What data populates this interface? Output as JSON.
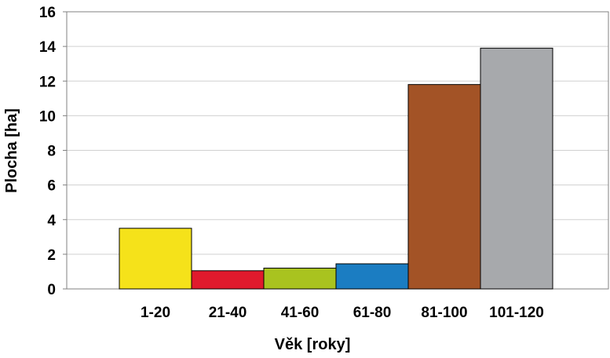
{
  "chart_data": {
    "type": "bar",
    "categories": [
      "1-20",
      "21-40",
      "41-60",
      "61-80",
      "81-100",
      "101-120"
    ],
    "values": [
      3.5,
      1.05,
      1.2,
      1.45,
      11.8,
      13.9
    ],
    "colors": [
      "#f5e21a",
      "#e01a2d",
      "#a9c31f",
      "#1b7dc2",
      "#a35326",
      "#a7a9ac"
    ],
    "ylim": [
      0,
      16
    ],
    "yticks": [
      "0",
      "2",
      "4",
      "6",
      "8",
      "10",
      "12",
      "14",
      "16"
    ],
    "xlabel": "Věk [roky]",
    "ylabel": "Plocha [ha]",
    "grid": true
  }
}
